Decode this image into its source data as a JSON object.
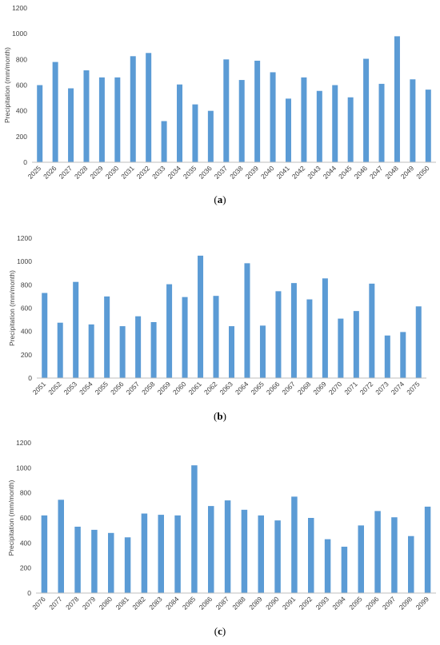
{
  "chart_data": [
    {
      "type": "bar",
      "caption_open": "(",
      "caption_letter": "a",
      "caption_close": ")",
      "ylabel": "Precipitation (mm/month)",
      "ylim": [
        0,
        1200
      ],
      "yticks": [
        0,
        200,
        400,
        600,
        800,
        1000,
        1200
      ],
      "grid": false,
      "color": "#5b9bd5",
      "categories": [
        "2025",
        "2026",
        "2027",
        "2028",
        "2029",
        "2030",
        "2031",
        "2032",
        "2033",
        "2034",
        "2035",
        "2036",
        "2037",
        "2038",
        "2039",
        "2040",
        "2041",
        "2042",
        "2043",
        "2044",
        "2045",
        "2046",
        "2047",
        "2048",
        "2049",
        "2050"
      ],
      "values": [
        600,
        780,
        575,
        715,
        660,
        660,
        825,
        850,
        320,
        605,
        450,
        400,
        800,
        640,
        790,
        700,
        495,
        660,
        555,
        600,
        505,
        805,
        610,
        980,
        645,
        565
      ]
    },
    {
      "type": "bar",
      "caption_open": "(",
      "caption_letter": "b",
      "caption_close": ")",
      "ylabel": "Precipitation (mm/month)",
      "ylim": [
        0,
        1200
      ],
      "yticks": [
        0,
        200,
        400,
        600,
        800,
        1000,
        1200
      ],
      "grid": false,
      "color": "#5b9bd5",
      "categories": [
        "2051",
        "2052",
        "2053",
        "2054",
        "2055",
        "2056",
        "2057",
        "2058",
        "2059",
        "2060",
        "2061",
        "2062",
        "2063",
        "2064",
        "2065",
        "2066",
        "2067",
        "2068",
        "2069",
        "2070",
        "2071",
        "2072",
        "2073",
        "2074",
        "2075"
      ],
      "values": [
        730,
        475,
        825,
        460,
        700,
        445,
        530,
        480,
        805,
        695,
        1050,
        705,
        445,
        985,
        450,
        745,
        815,
        675,
        855,
        510,
        575,
        810,
        365,
        395,
        615
      ]
    },
    {
      "type": "bar",
      "caption_open": "(",
      "caption_letter": "c",
      "caption_close": ")",
      "ylabel": "Precipitation (mm/month)",
      "ylim": [
        0,
        1200
      ],
      "yticks": [
        0,
        200,
        400,
        600,
        800,
        1000,
        1200
      ],
      "grid": false,
      "color": "#5b9bd5",
      "categories": [
        "2076",
        "2077",
        "2078",
        "2079",
        "2080",
        "2081",
        "2082",
        "2083",
        "2084",
        "2085",
        "2086",
        "2087",
        "2088",
        "2089",
        "2090",
        "2091",
        "2092",
        "2093",
        "2094",
        "2095",
        "2096",
        "2097",
        "2098",
        "2099"
      ],
      "values": [
        620,
        745,
        530,
        505,
        480,
        445,
        635,
        625,
        620,
        1020,
        695,
        740,
        665,
        620,
        580,
        770,
        600,
        430,
        370,
        540,
        655,
        605,
        455,
        690
      ]
    }
  ]
}
